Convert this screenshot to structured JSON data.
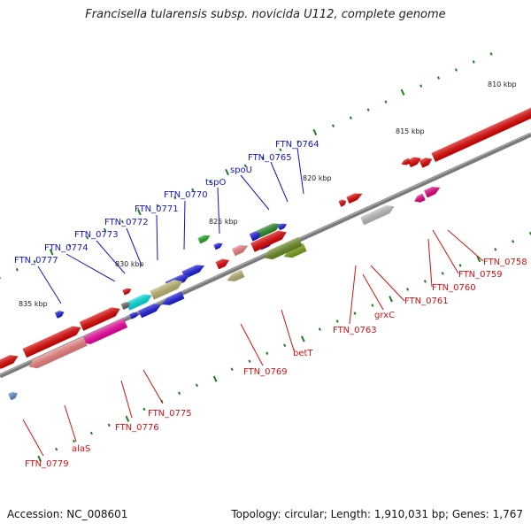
{
  "title": "Francisella tularensis subsp. novicida U112, complete genome",
  "footer": {
    "accession": "Accession: NC_008601",
    "topology": "Topology: circular; Length: 1,910,031 bp; Genes: 1,767"
  },
  "colors": {
    "backbone": "#7a7a7a",
    "forward_label": "#1414c8",
    "reverse_label": "#d41010",
    "tick": "#1f7f1f"
  },
  "scale_labels": [
    "810 kbp",
    "815 kbp",
    "820 kbp",
    "825 kbp",
    "830 kbp",
    "835 kbp"
  ],
  "forward_gene_labels": [
    "FTN_0764",
    "FTN_0765",
    "spoU",
    "tspO",
    "FTN_0770",
    "FTN_0771",
    "FTN_0772",
    "FTN_0773",
    "FTN_0774",
    "FTN_0777"
  ],
  "reverse_gene_labels": [
    "FTN_0758",
    "FTN_0759",
    "FTN_0760",
    "FTN_0761",
    "grxC",
    "FTN_0763",
    "betT",
    "FTN_0769",
    "FTN_0775",
    "FTN_0776",
    "alaS",
    "FTN_0779"
  ]
}
